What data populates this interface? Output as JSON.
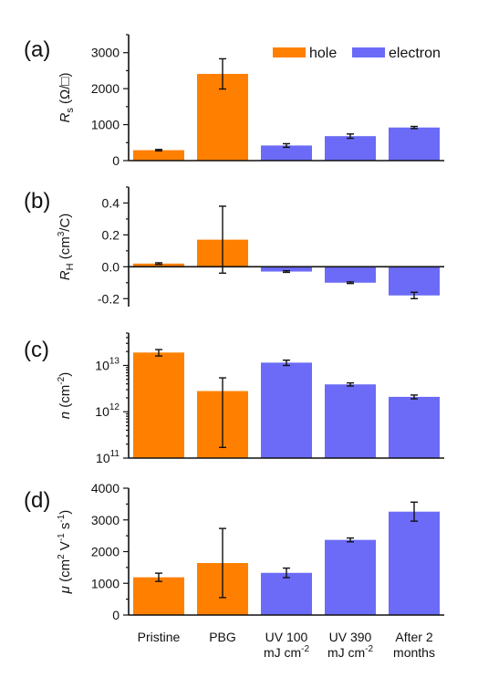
{
  "colors": {
    "hole": "#FF8000",
    "electron": "#6B6BF7",
    "axis": "#111111"
  },
  "legend": [
    {
      "key": "hole",
      "label": "hole"
    },
    {
      "key": "electron",
      "label": "electron"
    }
  ],
  "categories": [
    {
      "lines": [
        "Pristine"
      ]
    },
    {
      "lines": [
        "PBG"
      ]
    },
    {
      "lines": [
        "UV 100",
        "mJ cm",
        "-2"
      ]
    },
    {
      "lines": [
        "UV 390",
        "mJ cm",
        "-2"
      ]
    },
    {
      "lines": [
        "After 2",
        "months"
      ]
    }
  ],
  "bar_carrier": [
    "hole",
    "hole",
    "electron",
    "electron",
    "electron"
  ],
  "chart_data": [
    {
      "type": "bar",
      "panel": "(a)",
      "ylabel": {
        "main": "R",
        "sub": "s",
        "rest": " (Ω/□)"
      },
      "ylim": [
        0,
        3500
      ],
      "yticks": [
        "0",
        "1000",
        "2000",
        "3000"
      ],
      "categories": [
        "Pristine",
        "PBG",
        "UV 100 mJ cm-2",
        "UV 390 mJ cm-2",
        "After 2 months"
      ],
      "values": [
        290,
        2410,
        420,
        680,
        920
      ],
      "errors": [
        20,
        420,
        50,
        60,
        30
      ]
    },
    {
      "type": "bar",
      "panel": "(b)",
      "ylabel": {
        "main": "R",
        "sub": "H",
        "rest": " (cm",
        "sup": "3",
        "rest2": "/C)"
      },
      "ylim": [
        -0.25,
        0.5
      ],
      "yticks": [
        "-0.2",
        "0.0",
        "0.2",
        "0.4"
      ],
      "categories": [
        "Pristine",
        "PBG",
        "UV 100 mJ cm-2",
        "UV 390 mJ cm-2",
        "After 2 months"
      ],
      "values": [
        0.02,
        0.17,
        -0.03,
        -0.1,
        -0.18
      ],
      "errors": [
        0.005,
        0.21,
        0.005,
        0.005,
        0.02
      ]
    },
    {
      "type": "bar",
      "panel": "(c)",
      "scale": "log",
      "ylabel": {
        "main": "n",
        "rest": " (cm",
        "sup": "-2",
        "rest2": ")"
      },
      "ylim": [
        100000000000.0,
        50000000000000.0
      ],
      "yticks": [
        "10^11",
        "10^12",
        "10^13"
      ],
      "categories": [
        "Pristine",
        "PBG",
        "UV 100 mJ cm-2",
        "UV 390 mJ cm-2",
        "After 2 months"
      ],
      "values": [
        19000000000000.0,
        2800000000000.0,
        11500000000000.0,
        3900000000000.0,
        2100000000000.0
      ],
      "errors_low": [
        16000000000000.0,
        170000000000.0,
        10000000000000.0,
        3600000000000.0,
        1900000000000.0
      ],
      "errors_high": [
        22000000000000.0,
        5400000000000.0,
        13000000000000.0,
        4200000000000.0,
        2300000000000.0
      ]
    },
    {
      "type": "bar",
      "panel": "(d)",
      "ylabel": {
        "main": "μ",
        "rest": " (cm",
        "sup": "2",
        "rest2": " V",
        "sup2": "-1",
        "rest3": " s",
        "sup3": "-1",
        "rest4": ")"
      },
      "ylim": [
        0,
        4000
      ],
      "yticks": [
        "0",
        "1000",
        "2000",
        "3000",
        "4000"
      ],
      "categories": [
        "Pristine",
        "PBG",
        "UV 100 mJ cm-2",
        "UV 390 mJ cm-2",
        "After 2 months"
      ],
      "values": [
        1190,
        1640,
        1330,
        2370,
        3260
      ],
      "errors": [
        130,
        1090,
        150,
        60,
        300
      ]
    }
  ]
}
